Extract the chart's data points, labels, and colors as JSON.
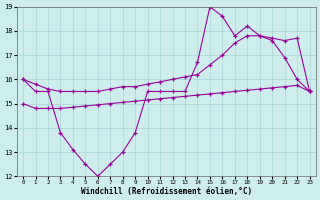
{
  "xlabel": "Windchill (Refroidissement éolien,°C)",
  "xlim": [
    -0.5,
    23.5
  ],
  "ylim": [
    12,
    19
  ],
  "xticks": [
    0,
    1,
    2,
    3,
    4,
    5,
    6,
    7,
    8,
    9,
    10,
    11,
    12,
    13,
    14,
    15,
    16,
    17,
    18,
    19,
    20,
    21,
    22,
    23
  ],
  "yticks": [
    12,
    13,
    14,
    15,
    16,
    17,
    18,
    19
  ],
  "bg_color": "#cdeeed",
  "line_color": "#990099",
  "s1x": [
    0,
    1,
    2,
    3,
    4,
    5,
    6,
    7,
    8,
    9,
    10,
    11,
    12,
    13,
    14,
    15,
    16,
    17,
    18,
    19,
    20,
    21,
    22,
    23
  ],
  "s1y": [
    16.0,
    15.5,
    15.5,
    13.8,
    13.1,
    12.5,
    12.0,
    12.5,
    13.0,
    13.8,
    15.5,
    15.5,
    15.5,
    15.5,
    16.7,
    19.0,
    18.6,
    17.8,
    18.2,
    17.8,
    17.6,
    16.9,
    16.0,
    15.5
  ],
  "s2x": [
    0,
    1,
    2,
    3,
    4,
    5,
    6,
    7,
    8,
    9,
    10,
    11,
    12,
    13,
    14,
    15,
    16,
    17,
    18,
    19,
    20,
    21,
    22,
    23
  ],
  "s2y": [
    16.0,
    15.8,
    15.6,
    15.5,
    15.5,
    15.5,
    15.5,
    15.6,
    15.7,
    15.7,
    15.8,
    15.9,
    16.0,
    16.1,
    16.2,
    16.6,
    17.0,
    17.5,
    17.8,
    17.8,
    17.7,
    17.6,
    17.7,
    15.5
  ],
  "s3x": [
    0,
    1,
    2,
    3,
    4,
    5,
    6,
    7,
    8,
    9,
    10,
    11,
    12,
    13,
    14,
    15,
    16,
    17,
    18,
    19,
    20,
    21,
    22,
    23
  ],
  "s3y": [
    15.0,
    14.8,
    14.8,
    14.8,
    14.85,
    14.9,
    14.95,
    15.0,
    15.05,
    15.1,
    15.15,
    15.2,
    15.25,
    15.3,
    15.35,
    15.4,
    15.45,
    15.5,
    15.55,
    15.6,
    15.65,
    15.7,
    15.75,
    15.5
  ]
}
